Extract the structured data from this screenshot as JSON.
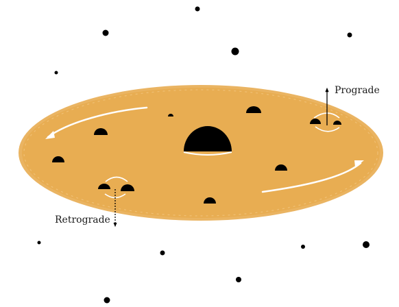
{
  "labels": {
    "prograde": "Prograde",
    "retrograde": "Retrograde"
  },
  "colors": {
    "disk": "#e8ad52",
    "disk_edge": "#f1c47e",
    "object": "#000000",
    "flow_arrow": "#ffffff",
    "background": "#ffffff"
  },
  "icons": {
    "central_body": "black-hole-dome",
    "embedded_body": "small-dome",
    "field_star": "dot"
  }
}
